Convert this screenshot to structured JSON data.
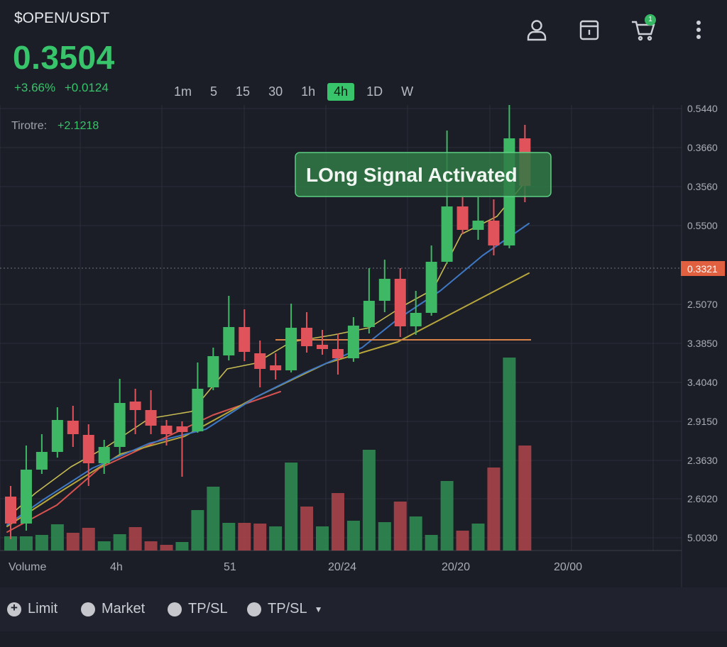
{
  "header": {
    "pair": "$OPEN/USDT",
    "price": "0.3504",
    "change_pct": "+3.66%",
    "change_abs": "+0.0124"
  },
  "icons": {
    "profile": "user-icon",
    "orders": "clipboard-icon",
    "cart": "cart-icon",
    "cart_badge": "1",
    "menu": "more-vertical-icon"
  },
  "timeframes": [
    {
      "label": "1m"
    },
    {
      "label": "5"
    },
    {
      "label": "15"
    },
    {
      "label": "30"
    },
    {
      "label": "1h"
    },
    {
      "label": "4h"
    },
    {
      "label": "1D"
    },
    {
      "label": "W"
    }
  ],
  "active_timeframe": "4h",
  "chart": {
    "indicator_label": "Tirotre:",
    "indicator_value": "+2.1218",
    "signal_text": "LOng Signal Activated",
    "current_price_tag": "0.3321",
    "colors": {
      "up": "#3fb865",
      "down": "#e0535a",
      "accent": "#37c46a"
    }
  },
  "chart_data": {
    "type": "candlestick",
    "y_axis_labels": [
      "0.5440",
      "0.3660",
      "0.3560",
      "0.5500",
      "0.3321",
      "2.5070",
      "3.3850",
      "3.4040",
      "2.9150",
      "2.3630",
      "2.6020",
      "5.0030"
    ],
    "x_axis_labels": [
      "Volume",
      "4h",
      "51",
      "20/24",
      "20/20",
      "20/00"
    ],
    "candles": [
      {
        "dir": "down",
        "body_top": 700,
        "body_bot": 738,
        "wick_top": 685,
        "wick_bot": 760
      },
      {
        "dir": "up",
        "body_top": 662,
        "body_bot": 738,
        "wick_top": 628,
        "wick_bot": 748
      },
      {
        "dir": "up",
        "body_top": 637,
        "body_bot": 662,
        "wick_top": 612,
        "wick_bot": 668
      },
      {
        "dir": "up",
        "body_top": 592,
        "body_bot": 637,
        "wick_top": 574,
        "wick_bot": 645
      },
      {
        "dir": "down",
        "body_top": 593,
        "body_bot": 612,
        "wick_top": 572,
        "wick_bot": 630
      },
      {
        "dir": "down",
        "body_top": 613,
        "body_bot": 653,
        "wick_top": 598,
        "wick_bot": 685
      },
      {
        "dir": "up",
        "body_top": 630,
        "body_bot": 653,
        "wick_top": 620,
        "wick_bot": 668
      },
      {
        "dir": "up",
        "body_top": 568,
        "body_bot": 630,
        "wick_top": 534,
        "wick_bot": 640
      },
      {
        "dir": "down",
        "body_top": 566,
        "body_bot": 578,
        "wick_top": 548,
        "wick_bot": 612
      },
      {
        "dir": "down",
        "body_top": 578,
        "body_bot": 600,
        "wick_top": 550,
        "wick_bot": 612
      },
      {
        "dir": "down",
        "body_top": 600,
        "body_bot": 612,
        "wick_top": 592,
        "wick_bot": 628
      },
      {
        "dir": "down",
        "body_top": 601,
        "body_bot": 609,
        "wick_top": 594,
        "wick_bot": 672
      },
      {
        "dir": "up",
        "body_top": 548,
        "body_bot": 608,
        "wick_top": 511,
        "wick_bot": 610
      },
      {
        "dir": "up",
        "body_top": 502,
        "body_bot": 546,
        "wick_top": 490,
        "wick_bot": 550
      },
      {
        "dir": "up",
        "body_top": 461,
        "body_bot": 501,
        "wick_top": 417,
        "wick_bot": 508
      },
      {
        "dir": "down",
        "body_top": 461,
        "body_bot": 496,
        "wick_top": 436,
        "wick_bot": 509
      },
      {
        "dir": "down",
        "body_top": 498,
        "body_bot": 520,
        "wick_top": 480,
        "wick_bot": 546
      },
      {
        "dir": "down",
        "body_top": 515,
        "body_bot": 522,
        "wick_top": 498,
        "wick_bot": 535
      },
      {
        "dir": "up",
        "body_top": 462,
        "body_bot": 522,
        "wick_top": 428,
        "wick_bot": 525
      },
      {
        "dir": "down",
        "body_top": 462,
        "body_bot": 488,
        "wick_top": 440,
        "wick_bot": 497
      },
      {
        "dir": "down",
        "body_top": 486,
        "body_bot": 492,
        "wick_top": 465,
        "wick_bot": 500
      },
      {
        "dir": "down",
        "body_top": 492,
        "body_bot": 505,
        "wick_top": 470,
        "wick_bot": 528
      },
      {
        "dir": "up",
        "body_top": 459,
        "body_bot": 505,
        "wick_top": 447,
        "wick_bot": 510
      },
      {
        "dir": "up",
        "body_top": 424,
        "body_bot": 461,
        "wick_top": 378,
        "wick_bot": 470
      },
      {
        "dir": "up",
        "body_top": 393,
        "body_bot": 424,
        "wick_top": 366,
        "wick_bot": 440
      },
      {
        "dir": "down",
        "body_top": 393,
        "body_bot": 460,
        "wick_top": 378,
        "wick_bot": 475
      },
      {
        "dir": "up",
        "body_top": 441,
        "body_bot": 460,
        "wick_top": 410,
        "wick_bot": 472
      },
      {
        "dir": "up",
        "body_top": 369,
        "body_bot": 441,
        "wick_top": 346,
        "wick_bot": 445
      },
      {
        "dir": "up",
        "body_top": 291,
        "body_bot": 369,
        "wick_top": 184,
        "wick_bot": 372
      },
      {
        "dir": "down",
        "body_top": 291,
        "body_bot": 324,
        "wick_top": 278,
        "wick_bot": 330
      },
      {
        "dir": "up",
        "body_top": 311,
        "body_bot": 324,
        "wick_top": 278,
        "wick_bot": 338
      },
      {
        "dir": "down",
        "body_top": 311,
        "body_bot": 346,
        "wick_top": 281,
        "wick_bot": 360
      },
      {
        "dir": "up",
        "body_top": 195,
        "body_bot": 346,
        "wick_top": 148,
        "wick_bot": 350
      },
      {
        "dir": "down",
        "body_top": 195,
        "body_bot": 262,
        "wick_top": 176,
        "wick_bot": 285
      }
    ],
    "volumes": [
      {
        "dir": "up",
        "h": 20
      },
      {
        "dir": "up",
        "h": 20
      },
      {
        "dir": "up",
        "h": 22
      },
      {
        "dir": "up",
        "h": 37
      },
      {
        "dir": "down",
        "h": 25
      },
      {
        "dir": "down",
        "h": 32
      },
      {
        "dir": "up",
        "h": 13
      },
      {
        "dir": "up",
        "h": 23
      },
      {
        "dir": "down",
        "h": 33
      },
      {
        "dir": "down",
        "h": 13
      },
      {
        "dir": "down",
        "h": 8
      },
      {
        "dir": "up",
        "h": 12
      },
      {
        "dir": "up",
        "h": 57
      },
      {
        "dir": "up",
        "h": 90
      },
      {
        "dir": "up",
        "h": 39
      },
      {
        "dir": "down",
        "h": 39
      },
      {
        "dir": "down",
        "h": 38
      },
      {
        "dir": "up",
        "h": 34
      },
      {
        "dir": "up",
        "h": 124
      },
      {
        "dir": "down",
        "h": 62
      },
      {
        "dir": "up",
        "h": 34
      },
      {
        "dir": "down",
        "h": 81
      },
      {
        "dir": "up",
        "h": 42
      },
      {
        "dir": "up",
        "h": 142
      },
      {
        "dir": "up",
        "h": 40
      },
      {
        "dir": "down",
        "h": 69
      },
      {
        "dir": "up",
        "h": 48
      },
      {
        "dir": "up",
        "h": 22
      },
      {
        "dir": "up",
        "h": 98
      },
      {
        "dir": "down",
        "h": 28
      },
      {
        "dir": "up",
        "h": 38
      },
      {
        "dir": "down",
        "h": 117
      },
      {
        "dir": "up",
        "h": 272
      },
      {
        "dir": "down",
        "h": 148
      }
    ]
  },
  "order_types": [
    {
      "label": "Limit",
      "icon": "plus-circle-icon"
    },
    {
      "label": "Market",
      "icon": "circle-icon"
    },
    {
      "label": "TP/SL",
      "icon": "circle-icon"
    },
    {
      "label": "TP/SL",
      "icon": "circle-icon",
      "dropdown": true
    }
  ]
}
